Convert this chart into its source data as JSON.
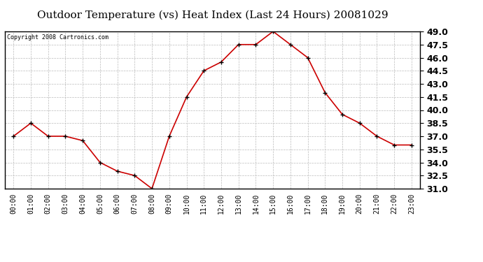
{
  "title": "Outdoor Temperature (vs) Heat Index (Last 24 Hours) 20081029",
  "copyright_text": "Copyright 2008 Cartronics.com",
  "x_labels": [
    "00:00",
    "01:00",
    "02:00",
    "03:00",
    "04:00",
    "05:00",
    "06:00",
    "07:00",
    "08:00",
    "09:00",
    "10:00",
    "11:00",
    "12:00",
    "13:00",
    "14:00",
    "15:00",
    "16:00",
    "17:00",
    "18:00",
    "19:00",
    "20:00",
    "21:00",
    "22:00",
    "23:00"
  ],
  "y_values": [
    37.0,
    38.5,
    37.0,
    37.0,
    36.5,
    34.0,
    33.0,
    32.5,
    31.0,
    37.0,
    41.5,
    44.5,
    45.5,
    47.5,
    47.5,
    49.0,
    47.5,
    46.0,
    42.0,
    39.5,
    38.5,
    37.0,
    36.0,
    36.0
  ],
  "line_color": "#cc0000",
  "marker": "+",
  "marker_color": "#000000",
  "background_color": "#ffffff",
  "grid_color": "#bbbbbb",
  "ylim_min": 31.0,
  "ylim_max": 49.0,
  "yticks": [
    31.0,
    32.5,
    34.0,
    35.5,
    37.0,
    38.5,
    40.0,
    41.5,
    43.0,
    44.5,
    46.0,
    47.5,
    49.0
  ],
  "title_fontsize": 11,
  "copyright_fontsize": 6,
  "ylabel_fontsize": 9,
  "xlabel_fontsize": 7
}
